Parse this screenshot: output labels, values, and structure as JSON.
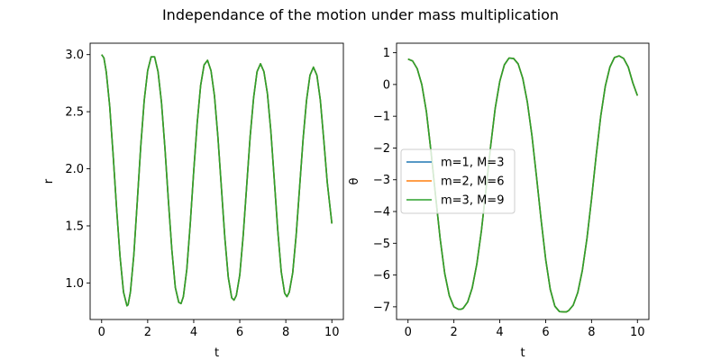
{
  "figure": {
    "title": "Independance of the motion under mass multiplication"
  },
  "chart_data": [
    {
      "type": "line",
      "xlabel": "t",
      "ylabel": "r",
      "xlim": [
        -0.5,
        10.5
      ],
      "ylim": [
        0.68,
        3.1
      ],
      "xticks": [
        0,
        2,
        4,
        6,
        8,
        10
      ],
      "yticks": [
        1.0,
        1.5,
        2.0,
        2.5,
        3.0
      ],
      "ytick_labels": [
        "1.0",
        "1.5",
        "2.0",
        "2.5",
        "3.0"
      ],
      "x": [
        0,
        0.1,
        0.2,
        0.35,
        0.5,
        0.65,
        0.8,
        0.95,
        1.1,
        1.15,
        1.25,
        1.4,
        1.55,
        1.7,
        1.85,
        2.0,
        2.15,
        2.3,
        2.45,
        2.6,
        2.75,
        2.9,
        3.05,
        3.2,
        3.35,
        3.45,
        3.55,
        3.7,
        3.85,
        4.0,
        4.15,
        4.3,
        4.45,
        4.6,
        4.75,
        4.9,
        5.05,
        5.2,
        5.35,
        5.5,
        5.65,
        5.75,
        5.85,
        6.0,
        6.15,
        6.3,
        6.45,
        6.6,
        6.75,
        6.9,
        7.05,
        7.2,
        7.35,
        7.5,
        7.65,
        7.8,
        7.95,
        8.05,
        8.15,
        8.3,
        8.45,
        8.6,
        8.75,
        8.9,
        9.05,
        9.2,
        9.35,
        9.5,
        9.65,
        9.8,
        10.0
      ],
      "series": [
        {
          "name": "m=1, M=3",
          "color": "#1f77b4",
          "values": [
            3.0,
            2.97,
            2.85,
            2.55,
            2.12,
            1.65,
            1.23,
            0.92,
            0.8,
            0.81,
            0.92,
            1.25,
            1.72,
            2.2,
            2.6,
            2.86,
            2.98,
            2.98,
            2.85,
            2.58,
            2.18,
            1.72,
            1.29,
            0.96,
            0.83,
            0.82,
            0.88,
            1.12,
            1.52,
            1.98,
            2.4,
            2.73,
            2.91,
            2.95,
            2.86,
            2.64,
            2.28,
            1.84,
            1.4,
            1.05,
            0.87,
            0.85,
            0.89,
            1.07,
            1.42,
            1.85,
            2.28,
            2.62,
            2.85,
            2.92,
            2.85,
            2.66,
            2.33,
            1.9,
            1.46,
            1.1,
            0.91,
            0.88,
            0.92,
            1.09,
            1.42,
            1.84,
            2.26,
            2.6,
            2.82,
            2.89,
            2.82,
            2.6,
            2.25,
            1.88,
            1.52
          ]
        },
        {
          "name": "m=2, M=6",
          "color": "#ff7f0e",
          "values": [
            3.0,
            2.97,
            2.85,
            2.55,
            2.12,
            1.65,
            1.23,
            0.92,
            0.8,
            0.81,
            0.92,
            1.25,
            1.72,
            2.2,
            2.6,
            2.86,
            2.98,
            2.98,
            2.85,
            2.58,
            2.18,
            1.72,
            1.29,
            0.96,
            0.83,
            0.82,
            0.88,
            1.12,
            1.52,
            1.98,
            2.4,
            2.73,
            2.91,
            2.95,
            2.86,
            2.64,
            2.28,
            1.84,
            1.4,
            1.05,
            0.87,
            0.85,
            0.89,
            1.07,
            1.42,
            1.85,
            2.28,
            2.62,
            2.85,
            2.92,
            2.85,
            2.66,
            2.33,
            1.9,
            1.46,
            1.1,
            0.91,
            0.88,
            0.92,
            1.09,
            1.42,
            1.84,
            2.26,
            2.6,
            2.82,
            2.89,
            2.82,
            2.6,
            2.25,
            1.88,
            1.52
          ]
        },
        {
          "name": "m=3, M=9",
          "color": "#2ca02c",
          "values": [
            3.0,
            2.97,
            2.85,
            2.55,
            2.12,
            1.65,
            1.23,
            0.92,
            0.8,
            0.81,
            0.92,
            1.25,
            1.72,
            2.2,
            2.6,
            2.86,
            2.98,
            2.98,
            2.85,
            2.58,
            2.18,
            1.72,
            1.29,
            0.96,
            0.83,
            0.82,
            0.88,
            1.12,
            1.52,
            1.98,
            2.4,
            2.73,
            2.91,
            2.95,
            2.86,
            2.64,
            2.28,
            1.84,
            1.4,
            1.05,
            0.87,
            0.85,
            0.89,
            1.07,
            1.42,
            1.85,
            2.28,
            2.62,
            2.85,
            2.92,
            2.85,
            2.66,
            2.33,
            1.9,
            1.46,
            1.1,
            0.91,
            0.88,
            0.92,
            1.09,
            1.42,
            1.84,
            2.26,
            2.6,
            2.82,
            2.89,
            2.82,
            2.6,
            2.25,
            1.88,
            1.52
          ]
        }
      ]
    },
    {
      "type": "line",
      "xlabel": "t",
      "ylabel": "θ",
      "xlim": [
        -0.5,
        10.5
      ],
      "ylim": [
        -7.4,
        1.3
      ],
      "xticks": [
        0,
        2,
        4,
        6,
        8,
        10
      ],
      "yticks": [
        1,
        0,
        -1,
        -2,
        -3,
        -4,
        -5,
        -6,
        -7
      ],
      "ytick_labels": [
        "1",
        "0",
        "−1",
        "−2",
        "−3",
        "−4",
        "−5",
        "−6",
        "−7"
      ],
      "legend": {
        "loc": "center-left"
      },
      "x": [
        0,
        0.2,
        0.4,
        0.6,
        0.8,
        1.0,
        1.2,
        1.4,
        1.6,
        1.8,
        2.0,
        2.2,
        2.3,
        2.4,
        2.6,
        2.8,
        3.0,
        3.2,
        3.4,
        3.6,
        3.8,
        4.0,
        4.2,
        4.4,
        4.6,
        4.8,
        5.0,
        5.2,
        5.4,
        5.6,
        5.8,
        6.0,
        6.2,
        6.4,
        6.6,
        6.8,
        6.9,
        7.0,
        7.2,
        7.4,
        7.6,
        7.8,
        8.0,
        8.2,
        8.4,
        8.6,
        8.8,
        9.0,
        9.2,
        9.4,
        9.6,
        9.8,
        10.0
      ],
      "series": [
        {
          "name": "m=1, M=3",
          "color": "#1f77b4",
          "values": [
            0.8,
            0.74,
            0.5,
            0.0,
            -0.85,
            -2.1,
            -3.5,
            -4.85,
            -5.95,
            -6.65,
            -7.0,
            -7.08,
            -7.08,
            -7.05,
            -6.85,
            -6.4,
            -5.65,
            -4.6,
            -3.3,
            -1.95,
            -0.75,
            0.1,
            0.62,
            0.83,
            0.82,
            0.65,
            0.2,
            -0.55,
            -1.6,
            -2.9,
            -4.25,
            -5.5,
            -6.45,
            -6.98,
            -7.15,
            -7.16,
            -7.16,
            -7.12,
            -6.95,
            -6.55,
            -5.85,
            -4.85,
            -3.6,
            -2.25,
            -1.0,
            -0.05,
            0.55,
            0.85,
            0.9,
            0.82,
            0.55,
            0.05,
            -0.35
          ]
        },
        {
          "name": "m=2, M=6",
          "color": "#ff7f0e",
          "values": [
            0.8,
            0.74,
            0.5,
            0.0,
            -0.85,
            -2.1,
            -3.5,
            -4.85,
            -5.95,
            -6.65,
            -7.0,
            -7.08,
            -7.08,
            -7.05,
            -6.85,
            -6.4,
            -5.65,
            -4.6,
            -3.3,
            -1.95,
            -0.75,
            0.1,
            0.62,
            0.83,
            0.82,
            0.65,
            0.2,
            -0.55,
            -1.6,
            -2.9,
            -4.25,
            -5.5,
            -6.45,
            -6.98,
            -7.15,
            -7.16,
            -7.16,
            -7.12,
            -6.95,
            -6.55,
            -5.85,
            -4.85,
            -3.6,
            -2.25,
            -1.0,
            -0.05,
            0.55,
            0.85,
            0.9,
            0.82,
            0.55,
            0.05,
            -0.35
          ]
        },
        {
          "name": "m=3, M=9",
          "color": "#2ca02c",
          "values": [
            0.8,
            0.74,
            0.5,
            0.0,
            -0.85,
            -2.1,
            -3.5,
            -4.85,
            -5.95,
            -6.65,
            -7.0,
            -7.08,
            -7.08,
            -7.05,
            -6.85,
            -6.4,
            -5.65,
            -4.6,
            -3.3,
            -1.95,
            -0.75,
            0.1,
            0.62,
            0.83,
            0.82,
            0.65,
            0.2,
            -0.55,
            -1.6,
            -2.9,
            -4.25,
            -5.5,
            -6.45,
            -6.98,
            -7.15,
            -7.16,
            -7.16,
            -7.12,
            -6.95,
            -6.55,
            -5.85,
            -4.85,
            -3.6,
            -2.25,
            -1.0,
            -0.05,
            0.55,
            0.85,
            0.9,
            0.82,
            0.55,
            0.05,
            -0.35
          ]
        }
      ]
    }
  ]
}
